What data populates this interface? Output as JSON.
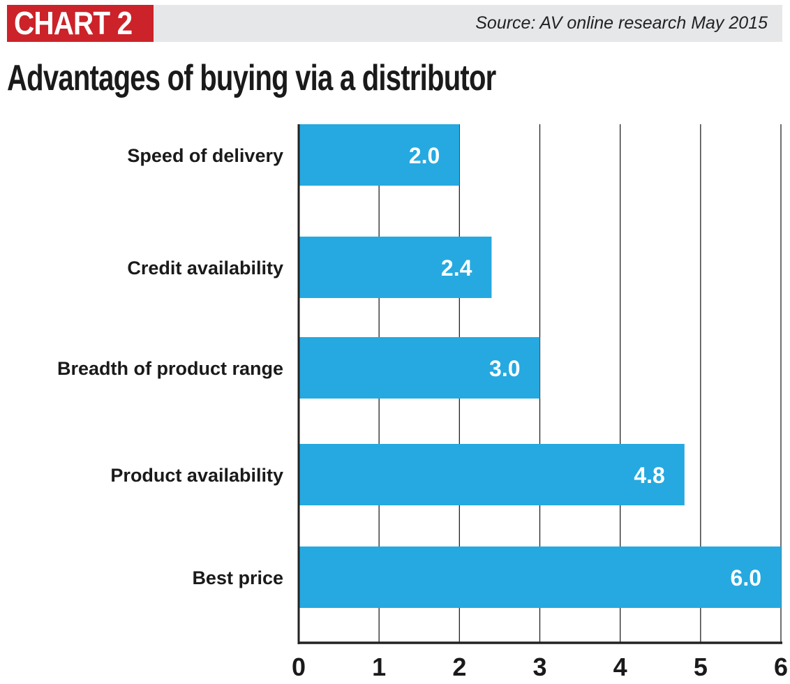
{
  "header": {
    "badge": "CHART 2",
    "source": "Source: AV online research May 2015"
  },
  "colors": {
    "bar": "#25a9e0",
    "badge": "#cc2229",
    "header_bg": "#e6e7e8"
  },
  "chart_data": {
    "type": "bar",
    "orientation": "horizontal",
    "title": "Advantages of buying via a distributor",
    "categories": [
      "Speed of delivery",
      "Credit availability",
      "Breadth of product range",
      "Product availability",
      "Best price"
    ],
    "values": [
      2.0,
      2.4,
      3.0,
      4.8,
      6.0
    ],
    "value_labels": [
      "2.0",
      "2.4",
      "3.0",
      "4.8",
      "6.0"
    ],
    "xlim": [
      0,
      6
    ],
    "xticks": [
      "0",
      "1",
      "2",
      "3",
      "4",
      "5",
      "6"
    ],
    "grid": true,
    "xlabel": "",
    "ylabel": ""
  }
}
